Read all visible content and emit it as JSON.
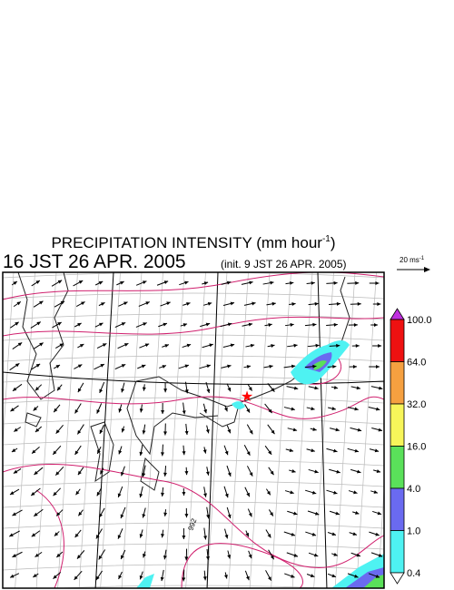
{
  "header": {
    "title": {
      "main": "PRECIPITATION INTENSITY (mm hour",
      "sup": "-1",
      "close": ")"
    },
    "time": "16 JST 26 APR. 2005",
    "init": "(init. 9 JST 26 APR. 2005)"
  },
  "wind_scale": {
    "main": "20 ms",
    "sup": "-1"
  },
  "colorbar": {
    "labels": [
      "100.0",
      "64.0",
      "32.0",
      "16.0",
      "4.0",
      "1.0",
      "0.4"
    ]
  },
  "map": {
    "contour_label": "992"
  }
}
